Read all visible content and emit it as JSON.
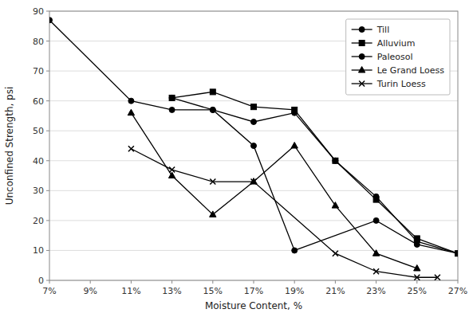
{
  "chart_data": {
    "type": "line",
    "xlabel": "Moisture Content, %",
    "ylabel": "Unconfined Strength, psi",
    "xlim": [
      7,
      27
    ],
    "ylim": [
      0,
      90
    ],
    "xticks": [
      {
        "value": 7,
        "label": "7%"
      },
      {
        "value": 9,
        "label": "9%"
      },
      {
        "value": 11,
        "label": "11%"
      },
      {
        "value": 13,
        "label": "13%"
      },
      {
        "value": 15,
        "label": "15%"
      },
      {
        "value": 17,
        "label": "17%"
      },
      {
        "value": 19,
        "label": "19%"
      },
      {
        "value": 21,
        "label": "21%"
      },
      {
        "value": 23,
        "label": "23%"
      },
      {
        "value": 25,
        "label": "25%"
      },
      {
        "value": 27,
        "label": "27%"
      }
    ],
    "yticks": [
      0,
      10,
      20,
      30,
      40,
      50,
      60,
      70,
      80,
      90
    ],
    "grid": "y",
    "legend": "upper right",
    "series": [
      {
        "name": "Till",
        "color": "#000000",
        "marker": "circle",
        "line_style": "solid",
        "x": [
          7,
          11,
          13,
          15,
          17,
          19,
          21,
          23,
          25,
          27
        ],
        "values": [
          87,
          60,
          57,
          57,
          53,
          56,
          40,
          28,
          13,
          9
        ]
      },
      {
        "name": "Alluvium",
        "color": "#000000",
        "marker": "square",
        "line_style": "solid",
        "x": [
          13,
          15,
          17,
          19,
          21,
          23,
          25,
          27
        ],
        "values": [
          61,
          63,
          58,
          57,
          40,
          27,
          14,
          9
        ]
      },
      {
        "name": "Paleosol",
        "color": "#000000",
        "marker": "circle",
        "line_style": "solid",
        "x": [
          13,
          15,
          17,
          19,
          23,
          25,
          27
        ],
        "values": [
          61,
          57,
          45,
          10,
          20,
          12,
          9
        ]
      },
      {
        "name": "Le Grand Loess",
        "color": "#000000",
        "marker": "triangle",
        "line_style": "solid",
        "x": [
          11,
          13,
          15,
          17,
          19,
          21,
          23,
          25
        ],
        "values": [
          56,
          35,
          22,
          33,
          45,
          25,
          9,
          4
        ]
      },
      {
        "name": "Turin Loess",
        "color": "#000000",
        "marker": "x",
        "line_style": "solid",
        "x": [
          11,
          13,
          15,
          17,
          21,
          23,
          25,
          26
        ],
        "values": [
          44,
          37,
          33,
          33,
          9,
          3,
          1,
          1
        ]
      }
    ]
  }
}
